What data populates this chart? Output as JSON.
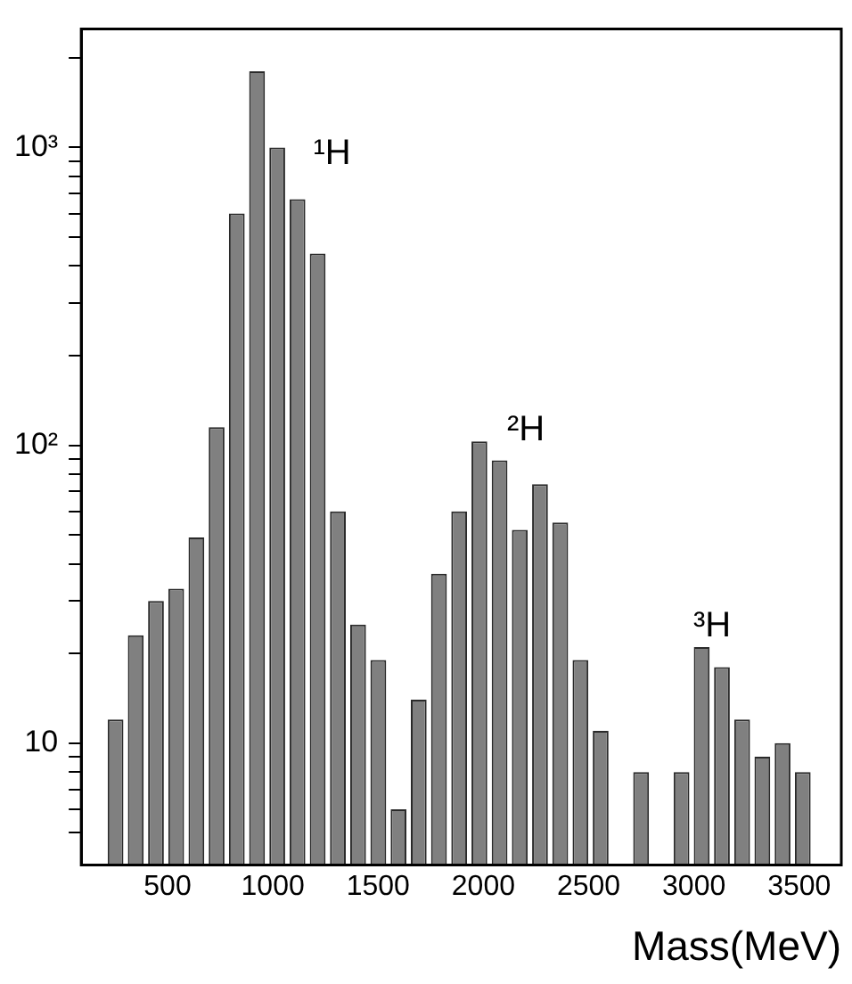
{
  "chart_data": {
    "type": "histogram",
    "xlabel": "Mass(MeV)",
    "bins": [
      205,
      301,
      397,
      493,
      589,
      685,
      781,
      877,
      973,
      1069,
      1165,
      1261,
      1357,
      1453,
      1549,
      1645,
      1741,
      1837,
      1933,
      2029,
      2125,
      2221,
      2317,
      2413,
      2509,
      2605,
      2701,
      2797,
      2893,
      2989,
      3085,
      3181,
      3277,
      3373,
      3469,
      3565
    ],
    "values": [
      12,
      23,
      30,
      33,
      49,
      115,
      600,
      1800,
      1000,
      670,
      440,
      60,
      25,
      19,
      6,
      14,
      37,
      60,
      103,
      89,
      52,
      74,
      55,
      19,
      11,
      null,
      8,
      null,
      8,
      21,
      18,
      12,
      9,
      10,
      8
    ],
    "color": "#808080",
    "log": true,
    "xlim": [
      90,
      3700
    ],
    "xticks": [
      500,
      1000,
      1500,
      2000,
      2500,
      3000,
      3500
    ],
    "ylim": [
      3.9,
      2500
    ],
    "yticks": [
      {
        "value": 5,
        "label": null
      },
      {
        "value": 6,
        "label": null
      },
      {
        "value": 7,
        "label": null
      },
      {
        "value": 8,
        "label": null
      },
      {
        "value": 9,
        "label": null
      },
      10,
      {
        "value": 20,
        "label": null
      },
      {
        "value": 30,
        "label": null
      },
      {
        "value": 40,
        "label": null
      },
      {
        "value": 50,
        "label": null
      },
      {
        "value": 60,
        "label": null
      },
      {
        "value": 70,
        "label": null
      },
      {
        "value": 80,
        "label": null
      },
      {
        "value": 90,
        "label": null
      },
      {
        "value": 100,
        "label": "10²"
      },
      {
        "value": 200,
        "label": null
      },
      {
        "value": 300,
        "label": null
      },
      {
        "value": 400,
        "label": null
      },
      {
        "value": 500,
        "label": null
      },
      {
        "value": 600,
        "label": null
      },
      {
        "value": 700,
        "label": null
      },
      {
        "value": 800,
        "label": null
      },
      {
        "value": 900,
        "label": null
      },
      {
        "value": 1000,
        "label": "10³"
      },
      {
        "value": 2000,
        "label": null
      }
    ],
    "annotations": [
      "¹H",
      "²H",
      "³H"
    ]
  }
}
